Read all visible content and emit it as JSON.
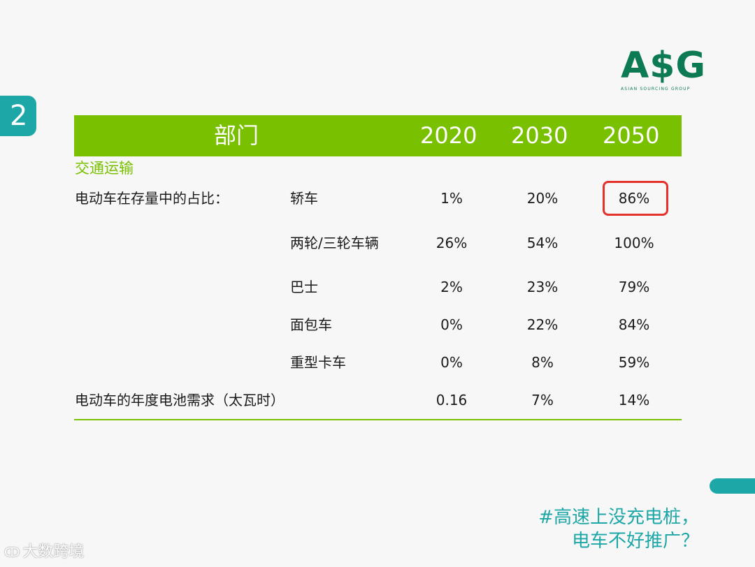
{
  "page_number": "2",
  "logo": {
    "mark": "A$G",
    "subtitle": "ASIAN SOURCING GROUP"
  },
  "table": {
    "headers": [
      "部门",
      "2020",
      "2030",
      "2050"
    ],
    "section": "交通运输",
    "group_label": "电动车在存量中的占比：",
    "rows": [
      {
        "label": "轿车",
        "values": [
          "1%",
          "20%",
          "86%"
        ]
      },
      {
        "label": "两轮/三轮车辆",
        "values": [
          "26%",
          "54%",
          "100%"
        ]
      },
      {
        "label": "巴士",
        "values": [
          "2%",
          "23%",
          "79%"
        ]
      },
      {
        "label": "面包车",
        "values": [
          "0%",
          "22%",
          "84%"
        ]
      },
      {
        "label": "重型卡车",
        "values": [
          "0%",
          "8%",
          "59%"
        ]
      }
    ],
    "battery_row": {
      "label": "电动车的年度电池需求（太瓦时）",
      "values": [
        "0.16",
        "7%",
        "14%"
      ]
    },
    "highlighted_cell": "86%"
  },
  "caption": {
    "line1": "#高速上没充电桩，",
    "line2": "电车不好推广？"
  },
  "watermark": {
    "icon": "ↀ",
    "text": "大数跨境"
  },
  "colors": {
    "header_green": "#79c000",
    "teal": "#1ea7a7",
    "highlight_red": "#e2322b",
    "logo_green": "#0c7a52"
  }
}
